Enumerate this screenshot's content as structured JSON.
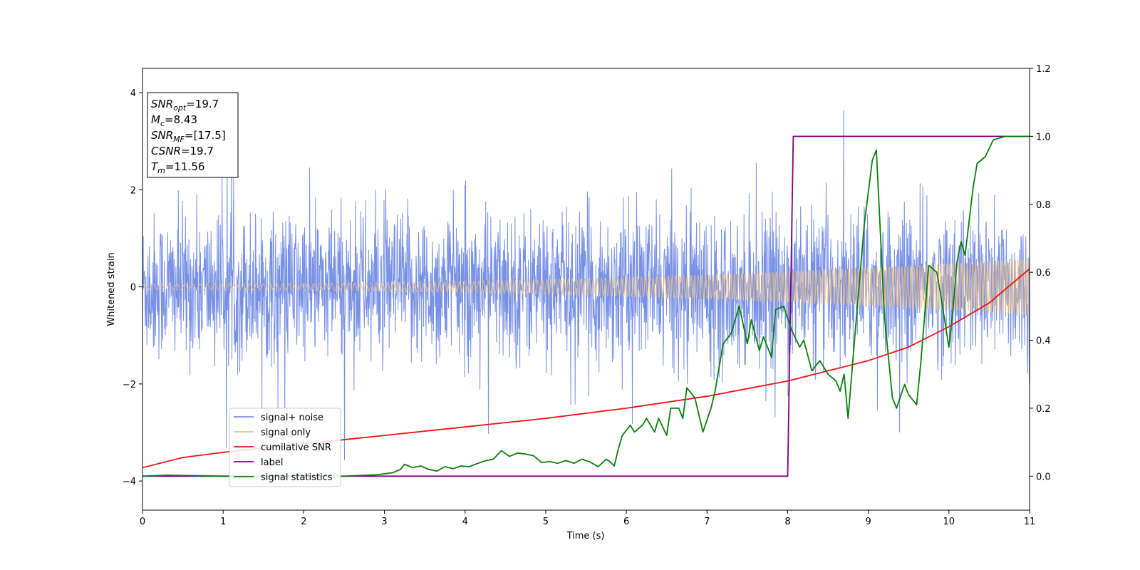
{
  "chart_data": {
    "type": "line",
    "xlabel": "Time (s)",
    "ylabel": "Whitened strain",
    "xlim": [
      0,
      11
    ],
    "ylim": [
      -4.6,
      4.5
    ],
    "y2lim": [
      -0.1,
      1.2
    ],
    "xticks": [
      0,
      1,
      2,
      3,
      4,
      5,
      6,
      7,
      8,
      9,
      10,
      11
    ],
    "yticks": [
      -4,
      -2,
      0,
      2,
      4
    ],
    "y2ticks": [
      0.0,
      0.2,
      0.4,
      0.6,
      0.8,
      1.0,
      1.2
    ],
    "xtick_labels": [
      "0",
      "1",
      "2",
      "3",
      "4",
      "5",
      "6",
      "7",
      "8",
      "9",
      "10",
      "11"
    ],
    "ytick_labels": [
      "−4",
      "−2",
      "0",
      "2",
      "4"
    ],
    "y2tick_labels": [
      "0.0",
      "0.2",
      "0.4",
      "0.6",
      "0.8",
      "1.0",
      "1.2"
    ],
    "grid": false,
    "legend_placement": "lower-left",
    "info_box": [
      {
        "base": "SNR",
        "sub": "opt",
        "value": "=19.7"
      },
      {
        "base": "M",
        "sub": "c",
        "value": "=8.43"
      },
      {
        "base": "SNR",
        "sub": "MF",
        "value": "=[17.5]"
      },
      {
        "base": "CSNR",
        "sub": "",
        "value": "=19.7"
      },
      {
        "base": "T",
        "sub": "m",
        "value": "=11.56"
      }
    ],
    "series": [
      {
        "name": "signal+ noise",
        "axis": "left",
        "color": "#7891e6",
        "kind": "noise",
        "envelope_std": 0.75,
        "spike_max": 4.05,
        "spike_min": -4.15
      },
      {
        "name": "signal only",
        "axis": "left",
        "color": "#f5c27a",
        "kind": "chirp",
        "amplitude_start": 0.06,
        "amplitude_end": 0.58
      },
      {
        "name": "cumilative SNR",
        "axis": "right",
        "color": "#ee1111",
        "x": [
          0,
          0.5,
          1,
          2,
          3,
          4,
          5,
          6,
          7,
          8,
          8.5,
          9,
          9.5,
          10,
          10.5,
          11
        ],
        "y": [
          0.025,
          0.055,
          0.07,
          0.095,
          0.12,
          0.145,
          0.17,
          0.2,
          0.235,
          0.28,
          0.31,
          0.34,
          0.38,
          0.44,
          0.51,
          0.61
        ]
      },
      {
        "name": "label",
        "axis": "right",
        "color": "#800080",
        "x": [
          0,
          8.0,
          8.07,
          11
        ],
        "y": [
          0.0,
          0.0,
          1.0,
          1.0
        ]
      },
      {
        "name": "signal statistics",
        "axis": "right",
        "color": "#0a7d0a",
        "x": [
          0,
          0.3,
          1,
          2,
          2.5,
          2.9,
          3.1,
          3.2,
          3.25,
          3.35,
          3.45,
          3.55,
          3.65,
          3.75,
          3.85,
          3.95,
          4.05,
          4.15,
          4.25,
          4.35,
          4.45,
          4.55,
          4.65,
          4.75,
          4.85,
          4.95,
          5.05,
          5.15,
          5.25,
          5.35,
          5.45,
          5.55,
          5.65,
          5.75,
          5.8,
          5.85,
          5.9,
          5.95,
          6.05,
          6.1,
          6.2,
          6.25,
          6.35,
          6.4,
          6.5,
          6.55,
          6.65,
          6.7,
          6.75,
          6.85,
          6.95,
          7.05,
          7.1,
          7.2,
          7.3,
          7.4,
          7.5,
          7.55,
          7.65,
          7.7,
          7.8,
          7.85,
          7.95,
          8.05,
          8.15,
          8.2,
          8.3,
          8.4,
          8.5,
          8.6,
          8.65,
          8.7,
          8.75,
          8.85,
          8.95,
          9.05,
          9.1,
          9.2,
          9.3,
          9.35,
          9.45,
          9.5,
          9.6,
          9.65,
          9.75,
          9.85,
          9.9,
          10.0,
          10.05,
          10.1,
          10.15,
          10.2,
          10.3,
          10.35,
          10.45,
          10.55,
          10.7,
          10.9,
          11.0
        ],
        "y": [
          0.0,
          0.003,
          0.0,
          0.0,
          0.0,
          0.004,
          0.01,
          0.02,
          0.035,
          0.025,
          0.03,
          0.02,
          0.015,
          0.028,
          0.022,
          0.03,
          0.028,
          0.037,
          0.045,
          0.05,
          0.075,
          0.058,
          0.068,
          0.065,
          0.06,
          0.04,
          0.043,
          0.038,
          0.046,
          0.038,
          0.05,
          0.042,
          0.028,
          0.05,
          0.042,
          0.03,
          0.08,
          0.12,
          0.15,
          0.13,
          0.15,
          0.17,
          0.13,
          0.17,
          0.12,
          0.2,
          0.2,
          0.17,
          0.26,
          0.23,
          0.13,
          0.2,
          0.25,
          0.39,
          0.42,
          0.5,
          0.39,
          0.46,
          0.37,
          0.41,
          0.35,
          0.49,
          0.5,
          0.43,
          0.38,
          0.4,
          0.31,
          0.34,
          0.3,
          0.28,
          0.25,
          0.3,
          0.17,
          0.46,
          0.74,
          0.93,
          0.96,
          0.47,
          0.23,
          0.2,
          0.27,
          0.24,
          0.21,
          0.33,
          0.62,
          0.6,
          0.53,
          0.38,
          0.49,
          0.63,
          0.69,
          0.65,
          0.85,
          0.92,
          0.94,
          0.99,
          1.0,
          1.0,
          1.0
        ]
      }
    ]
  }
}
